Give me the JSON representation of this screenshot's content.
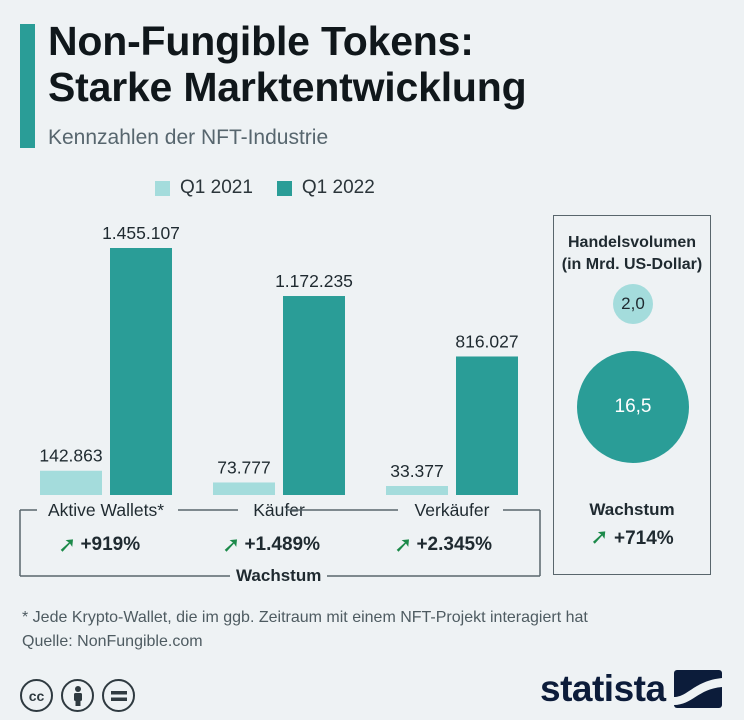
{
  "header": {
    "title_line1": "Non-Fungible Tokens:",
    "title_line2": "Starke Marktentwicklung",
    "subtitle": "Kennzahlen der NFT-Industrie"
  },
  "colors": {
    "accent": "#2a9d97",
    "q1_2021": "#a4dcdc",
    "q1_2022": "#2a9d97",
    "growth_arrow": "#1c8a4a"
  },
  "chart_data": [
    {
      "type": "bar",
      "categories": [
        "Aktive Wallets*",
        "Käufer",
        "Verkäufer"
      ],
      "series": [
        {
          "name": "Q1 2021",
          "values": [
            142863,
            73777,
            33377
          ],
          "labels": [
            "142.863",
            "73.777",
            "33.377"
          ]
        },
        {
          "name": "Q1 2022",
          "values": [
            1455107,
            1172235,
            816027
          ],
          "labels": [
            "1.455.107",
            "1.172.235",
            "816.027"
          ]
        }
      ],
      "growth": [
        "+919%",
        "+1.489%",
        "+2.345%"
      ],
      "growth_label": "Wachstum",
      "legend_position": "top",
      "grid": false
    },
    {
      "type": "bubble",
      "title_line1": "Handelsvolumen",
      "title_line2": "(in Mrd. US-Dollar)",
      "series": [
        {
          "name": "Q1 2021",
          "value": 2.0,
          "label": "2,0"
        },
        {
          "name": "Q1 2022",
          "value": 16.5,
          "label": "16,5"
        }
      ],
      "growth_label": "Wachstum",
      "growth": "+714%"
    }
  ],
  "footer": {
    "footnote": "* Jede Krypto-Wallet, die im ggb. Zeitraum mit einem NFT-Projekt interagiert hat",
    "source": "Quelle: NonFungible.com",
    "license_icons": [
      "cc",
      "by",
      "nd"
    ],
    "license_icon_names": [
      "creative-commons-icon",
      "attribution-icon",
      "no-derivatives-icon"
    ],
    "brand": "statista"
  }
}
